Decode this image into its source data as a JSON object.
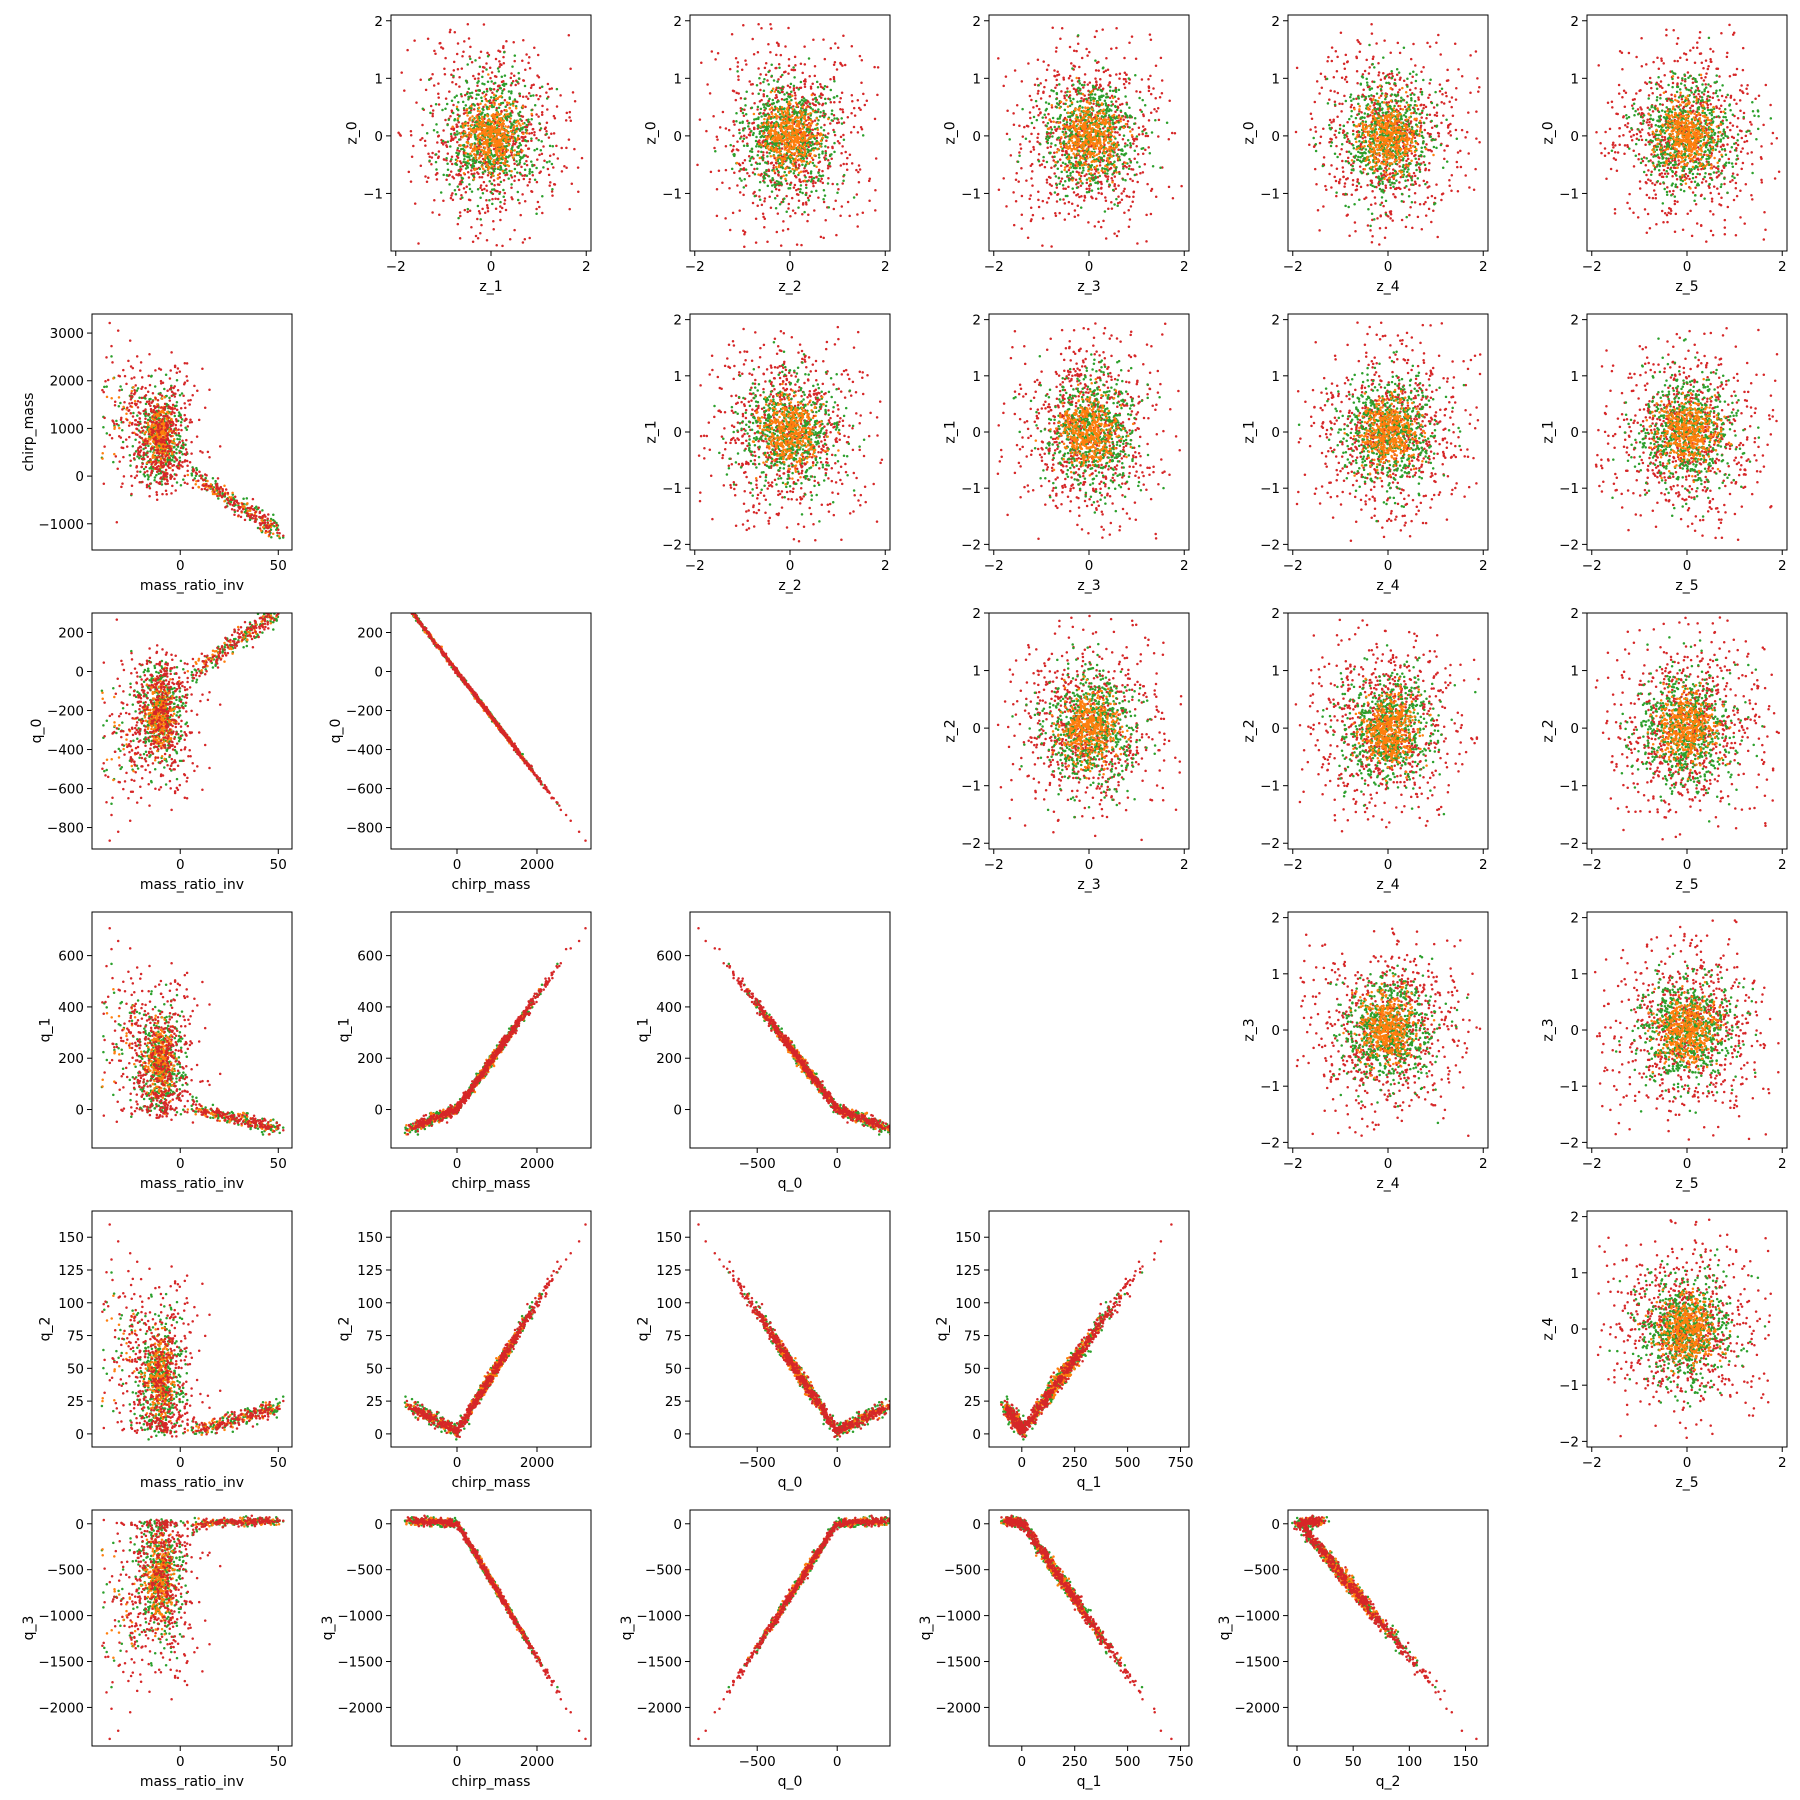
{
  "chart_data": {
    "type": "scatter",
    "layout": "pairwise scatter matrix (upper triangle: latent z pairs; lower triangle: physical q pairs)",
    "marker_colors": [
      "#d62728",
      "#2ca02c",
      "#ff7f0e"
    ],
    "grid": false,
    "legend": "none",
    "panels": [
      {
        "row": 0,
        "col": 1,
        "xlabel": "z_1",
        "ylabel": "z_0",
        "xticks": [
          "−2",
          "0",
          "2"
        ],
        "yticks": [
          "−1",
          "0",
          "1",
          "2"
        ],
        "xlim": [
          -2.1,
          2.1
        ],
        "ylim": [
          -2.0,
          2.1
        ],
        "kind": "gaussian"
      },
      {
        "row": 0,
        "col": 2,
        "xlabel": "z_2",
        "ylabel": "z_0",
        "xticks": [
          "−2",
          "0",
          "2"
        ],
        "yticks": [
          "−1",
          "0",
          "1",
          "2"
        ],
        "xlim": [
          -2.1,
          2.1
        ],
        "ylim": [
          -2.0,
          2.1
        ],
        "kind": "gaussian"
      },
      {
        "row": 0,
        "col": 3,
        "xlabel": "z_3",
        "ylabel": "z_0",
        "xticks": [
          "−2",
          "0",
          "2"
        ],
        "yticks": [
          "−1",
          "0",
          "1",
          "2"
        ],
        "xlim": [
          -2.1,
          2.1
        ],
        "ylim": [
          -2.0,
          2.1
        ],
        "kind": "gaussian"
      },
      {
        "row": 0,
        "col": 4,
        "xlabel": "z_4",
        "ylabel": "z_0",
        "xticks": [
          "−2",
          "0",
          "2"
        ],
        "yticks": [
          "−1",
          "0",
          "1",
          "2"
        ],
        "xlim": [
          -2.1,
          2.1
        ],
        "ylim": [
          -2.0,
          2.1
        ],
        "kind": "gaussian"
      },
      {
        "row": 0,
        "col": 5,
        "xlabel": "z_5",
        "ylabel": "z_0",
        "xticks": [
          "−2",
          "0",
          "2"
        ],
        "yticks": [
          "−1",
          "0",
          "1",
          "2"
        ],
        "xlim": [
          -2.1,
          2.1
        ],
        "ylim": [
          -2.0,
          2.1
        ],
        "kind": "gaussian"
      },
      {
        "row": 1,
        "col": 0,
        "xlabel": "mass_ratio_inv",
        "ylabel": "chirp_mass",
        "xticks": [
          "0",
          "50"
        ],
        "yticks": [
          "−1000",
          "0",
          "1000",
          "2000",
          "3000"
        ],
        "xlim": [
          -45,
          57
        ],
        "ylim": [
          -1550,
          3400
        ],
        "kind": "mr_chirp"
      },
      {
        "row": 1,
        "col": 2,
        "xlabel": "z_2",
        "ylabel": "z_1",
        "xticks": [
          "−2",
          "0",
          "2"
        ],
        "yticks": [
          "−2",
          "−1",
          "0",
          "1",
          "2"
        ],
        "xlim": [
          -2.1,
          2.1
        ],
        "ylim": [
          -2.1,
          2.1
        ],
        "kind": "gaussian"
      },
      {
        "row": 1,
        "col": 3,
        "xlabel": "z_3",
        "ylabel": "z_1",
        "xticks": [
          "−2",
          "0",
          "2"
        ],
        "yticks": [
          "−2",
          "−1",
          "0",
          "1",
          "2"
        ],
        "xlim": [
          -2.1,
          2.1
        ],
        "ylim": [
          -2.1,
          2.1
        ],
        "kind": "gaussian"
      },
      {
        "row": 1,
        "col": 4,
        "xlabel": "z_4",
        "ylabel": "z_1",
        "xticks": [
          "−2",
          "0",
          "2"
        ],
        "yticks": [
          "−2",
          "−1",
          "0",
          "1",
          "2"
        ],
        "xlim": [
          -2.1,
          2.1
        ],
        "ylim": [
          -2.1,
          2.1
        ],
        "kind": "gaussian"
      },
      {
        "row": 1,
        "col": 5,
        "xlabel": "z_5",
        "ylabel": "z_1",
        "xticks": [
          "−2",
          "0",
          "2"
        ],
        "yticks": [
          "−2",
          "−1",
          "0",
          "1",
          "2"
        ],
        "xlim": [
          -2.1,
          2.1
        ],
        "ylim": [
          -2.1,
          2.1
        ],
        "kind": "gaussian"
      },
      {
        "row": 2,
        "col": 0,
        "xlabel": "mass_ratio_inv",
        "ylabel": "q_0",
        "xticks": [
          "0",
          "50"
        ],
        "yticks": [
          "−800",
          "−600",
          "−400",
          "−200",
          "0",
          "200"
        ],
        "xlim": [
          -45,
          57
        ],
        "ylim": [
          -910,
          300
        ],
        "kind": "mr_q0"
      },
      {
        "row": 2,
        "col": 1,
        "xlabel": "chirp_mass",
        "ylabel": "q_0",
        "xticks": [
          "0",
          "2000"
        ],
        "yticks": [
          "−800",
          "−600",
          "−400",
          "−200",
          "0",
          "200"
        ],
        "xlim": [
          -1650,
          3350
        ],
        "ylim": [
          -910,
          300
        ],
        "kind": "chirp_q0"
      },
      {
        "row": 2,
        "col": 3,
        "xlabel": "z_3",
        "ylabel": "z_2",
        "xticks": [
          "−2",
          "0",
          "2"
        ],
        "yticks": [
          "−2",
          "−1",
          "0",
          "1",
          "2"
        ],
        "xlim": [
          -2.1,
          2.1
        ],
        "ylim": [
          -2.1,
          2.0
        ],
        "kind": "gaussian"
      },
      {
        "row": 2,
        "col": 4,
        "xlabel": "z_4",
        "ylabel": "z_2",
        "xticks": [
          "−2",
          "0",
          "2"
        ],
        "yticks": [
          "−2",
          "−1",
          "0",
          "1",
          "2"
        ],
        "xlim": [
          -2.1,
          2.1
        ],
        "ylim": [
          -2.1,
          2.0
        ],
        "kind": "gaussian"
      },
      {
        "row": 2,
        "col": 5,
        "xlabel": "z_5",
        "ylabel": "z_2",
        "xticks": [
          "−2",
          "0",
          "2"
        ],
        "yticks": [
          "−2",
          "−1",
          "0",
          "1",
          "2"
        ],
        "xlim": [
          -2.1,
          2.1
        ],
        "ylim": [
          -2.1,
          2.0
        ],
        "kind": "gaussian"
      },
      {
        "row": 3,
        "col": 0,
        "xlabel": "mass_ratio_inv",
        "ylabel": "q_1",
        "xticks": [
          "0",
          "50"
        ],
        "yticks": [
          "0",
          "200",
          "400",
          "600"
        ],
        "xlim": [
          -45,
          57
        ],
        "ylim": [
          -150,
          770
        ],
        "kind": "mr_q1"
      },
      {
        "row": 3,
        "col": 1,
        "xlabel": "chirp_mass",
        "ylabel": "q_1",
        "xticks": [
          "0",
          "2000"
        ],
        "yticks": [
          "0",
          "200",
          "400",
          "600"
        ],
        "xlim": [
          -1650,
          3350
        ],
        "ylim": [
          -150,
          770
        ],
        "kind": "chirp_q1"
      },
      {
        "row": 3,
        "col": 2,
        "xlabel": "q_0",
        "ylabel": "q_1",
        "xticks": [
          "−500",
          "0"
        ],
        "yticks": [
          "0",
          "200",
          "400",
          "600"
        ],
        "xlim": [
          -920,
          330
        ],
        "ylim": [
          -150,
          770
        ],
        "kind": "q0_q1"
      },
      {
        "row": 3,
        "col": 4,
        "xlabel": "z_4",
        "ylabel": "z_3",
        "xticks": [
          "−2",
          "0",
          "2"
        ],
        "yticks": [
          "−2",
          "−1",
          "0",
          "1",
          "2"
        ],
        "xlim": [
          -2.1,
          2.1
        ],
        "ylim": [
          -2.1,
          2.1
        ],
        "kind": "gaussian"
      },
      {
        "row": 3,
        "col": 5,
        "xlabel": "z_5",
        "ylabel": "z_3",
        "xticks": [
          "−2",
          "0",
          "2"
        ],
        "yticks": [
          "−2",
          "−1",
          "0",
          "1",
          "2"
        ],
        "xlim": [
          -2.1,
          2.1
        ],
        "ylim": [
          -2.1,
          2.1
        ],
        "kind": "gaussian"
      },
      {
        "row": 4,
        "col": 0,
        "xlabel": "mass_ratio_inv",
        "ylabel": "q_2",
        "xticks": [
          "0",
          "50"
        ],
        "yticks": [
          "0",
          "25",
          "50",
          "75",
          "100",
          "125",
          "150"
        ],
        "xlim": [
          -45,
          57
        ],
        "ylim": [
          -10,
          170
        ],
        "kind": "mr_q2"
      },
      {
        "row": 4,
        "col": 1,
        "xlabel": "chirp_mass",
        "ylabel": "q_2",
        "xticks": [
          "0",
          "2000"
        ],
        "yticks": [
          "0",
          "25",
          "50",
          "75",
          "100",
          "125",
          "150"
        ],
        "xlim": [
          -1650,
          3350
        ],
        "ylim": [
          -10,
          170
        ],
        "kind": "chirp_q2"
      },
      {
        "row": 4,
        "col": 2,
        "xlabel": "q_0",
        "ylabel": "q_2",
        "xticks": [
          "−500",
          "0"
        ],
        "yticks": [
          "0",
          "25",
          "50",
          "75",
          "100",
          "125",
          "150"
        ],
        "xlim": [
          -920,
          330
        ],
        "ylim": [
          -10,
          170
        ],
        "kind": "q0_q2"
      },
      {
        "row": 4,
        "col": 3,
        "xlabel": "q_1",
        "ylabel": "q_2",
        "xticks": [
          "0",
          "250",
          "500",
          "750"
        ],
        "yticks": [
          "0",
          "25",
          "50",
          "75",
          "100",
          "125",
          "150"
        ],
        "xlim": [
          -155,
          790
        ],
        "ylim": [
          -10,
          170
        ],
        "kind": "q1_q2"
      },
      {
        "row": 4,
        "col": 5,
        "xlabel": "z_5",
        "ylabel": "z_4",
        "xticks": [
          "−2",
          "0",
          "2"
        ],
        "yticks": [
          "−2",
          "−1",
          "0",
          "1",
          "2"
        ],
        "xlim": [
          -2.1,
          2.1
        ],
        "ylim": [
          -2.1,
          2.1
        ],
        "kind": "gaussian"
      },
      {
        "row": 5,
        "col": 0,
        "xlabel": "mass_ratio_inv",
        "ylabel": "q_3",
        "xticks": [
          "0",
          "50"
        ],
        "yticks": [
          "−2000",
          "−1500",
          "−1000",
          "−500",
          "0"
        ],
        "xlim": [
          -45,
          57
        ],
        "ylim": [
          -2420,
          150
        ],
        "kind": "mr_q3"
      },
      {
        "row": 5,
        "col": 1,
        "xlabel": "chirp_mass",
        "ylabel": "q_3",
        "xticks": [
          "0",
          "2000"
        ],
        "yticks": [
          "−2000",
          "−1500",
          "−1000",
          "−500",
          "0"
        ],
        "xlim": [
          -1650,
          3350
        ],
        "ylim": [
          -2420,
          150
        ],
        "kind": "chirp_q3"
      },
      {
        "row": 5,
        "col": 2,
        "xlabel": "q_0",
        "ylabel": "q_3",
        "xticks": [
          "−500",
          "0"
        ],
        "yticks": [
          "−2000",
          "−1500",
          "−1000",
          "−500",
          "0"
        ],
        "xlim": [
          -920,
          330
        ],
        "ylim": [
          -2420,
          150
        ],
        "kind": "q0_q3"
      },
      {
        "row": 5,
        "col": 3,
        "xlabel": "q_1",
        "ylabel": "q_3",
        "xticks": [
          "0",
          "250",
          "500",
          "750"
        ],
        "yticks": [
          "−2000",
          "−1500",
          "−1000",
          "−500",
          "0"
        ],
        "xlim": [
          -155,
          790
        ],
        "ylim": [
          -2420,
          150
        ],
        "kind": "q1_q3"
      },
      {
        "row": 5,
        "col": 4,
        "xlabel": "q_2",
        "ylabel": "q_3",
        "xticks": [
          "0",
          "50",
          "100",
          "150"
        ],
        "yticks": [
          "−2000",
          "−1500",
          "−1000",
          "−500",
          "0"
        ],
        "xlim": [
          -8,
          170
        ],
        "ylim": [
          -2420,
          150
        ],
        "kind": "q2_q3"
      }
    ]
  }
}
